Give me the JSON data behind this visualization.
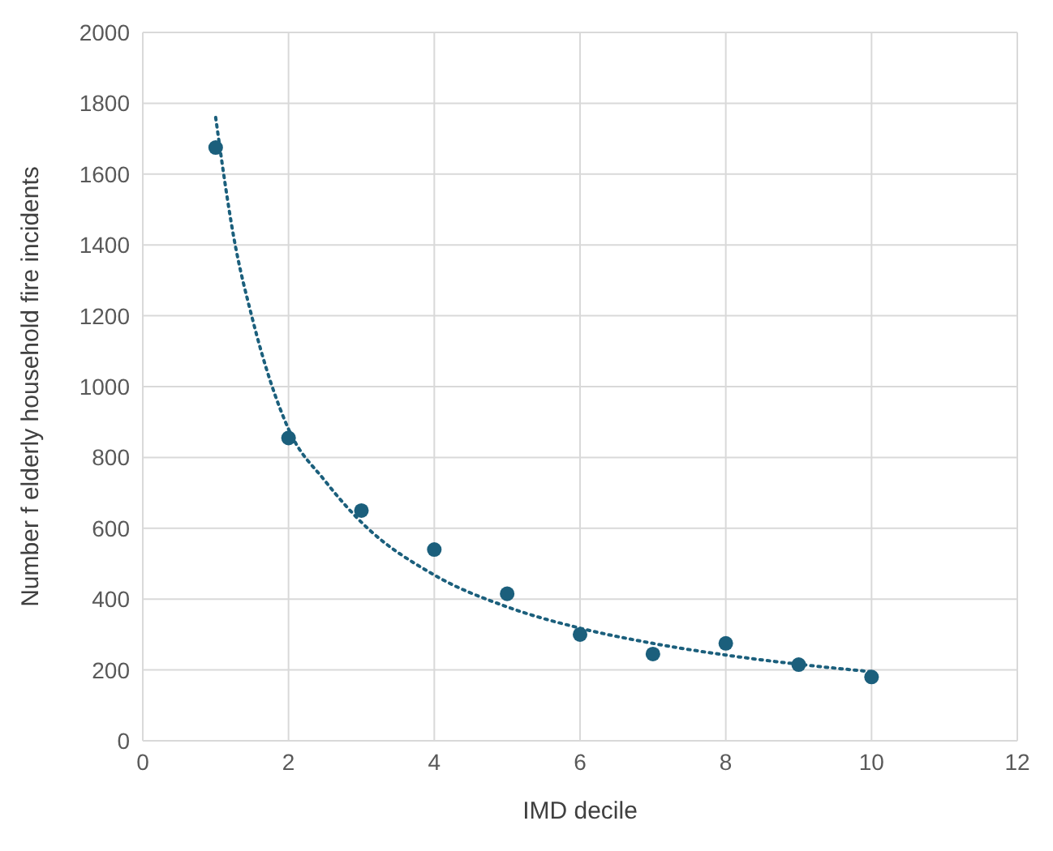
{
  "chart_data": {
    "type": "scatter",
    "xlabel": "IMD decile",
    "ylabel": "Number f elderly household fire incidents",
    "xlim": [
      0,
      12
    ],
    "xticks": [
      0,
      2,
      4,
      6,
      8,
      10,
      12
    ],
    "ylim": [
      0,
      2000
    ],
    "yticks": [
      0,
      200,
      400,
      600,
      800,
      1000,
      1200,
      1400,
      1600,
      1800,
      2000
    ],
    "grid": true,
    "series": [
      {
        "color": "#1b5f7c",
        "marker": "circle",
        "x": [
          1,
          2,
          3,
          4,
          5,
          6,
          7,
          8,
          9,
          10
        ],
        "values": [
          1675,
          855,
          650,
          540,
          415,
          300,
          245,
          275,
          215,
          180
        ]
      },
      {
        "type": "line",
        "color": "#1b5f7c",
        "marker": "none",
        "line_style": "dotted",
        "x": [
          1,
          1.25,
          1.5,
          2,
          2.5,
          3,
          4,
          5,
          6,
          7,
          8,
          9,
          10
        ],
        "values": [
          1760,
          1420,
          1195,
          880,
          734,
          617,
          468,
          378,
          318,
          275,
          242,
          216,
          195
        ]
      }
    ]
  }
}
